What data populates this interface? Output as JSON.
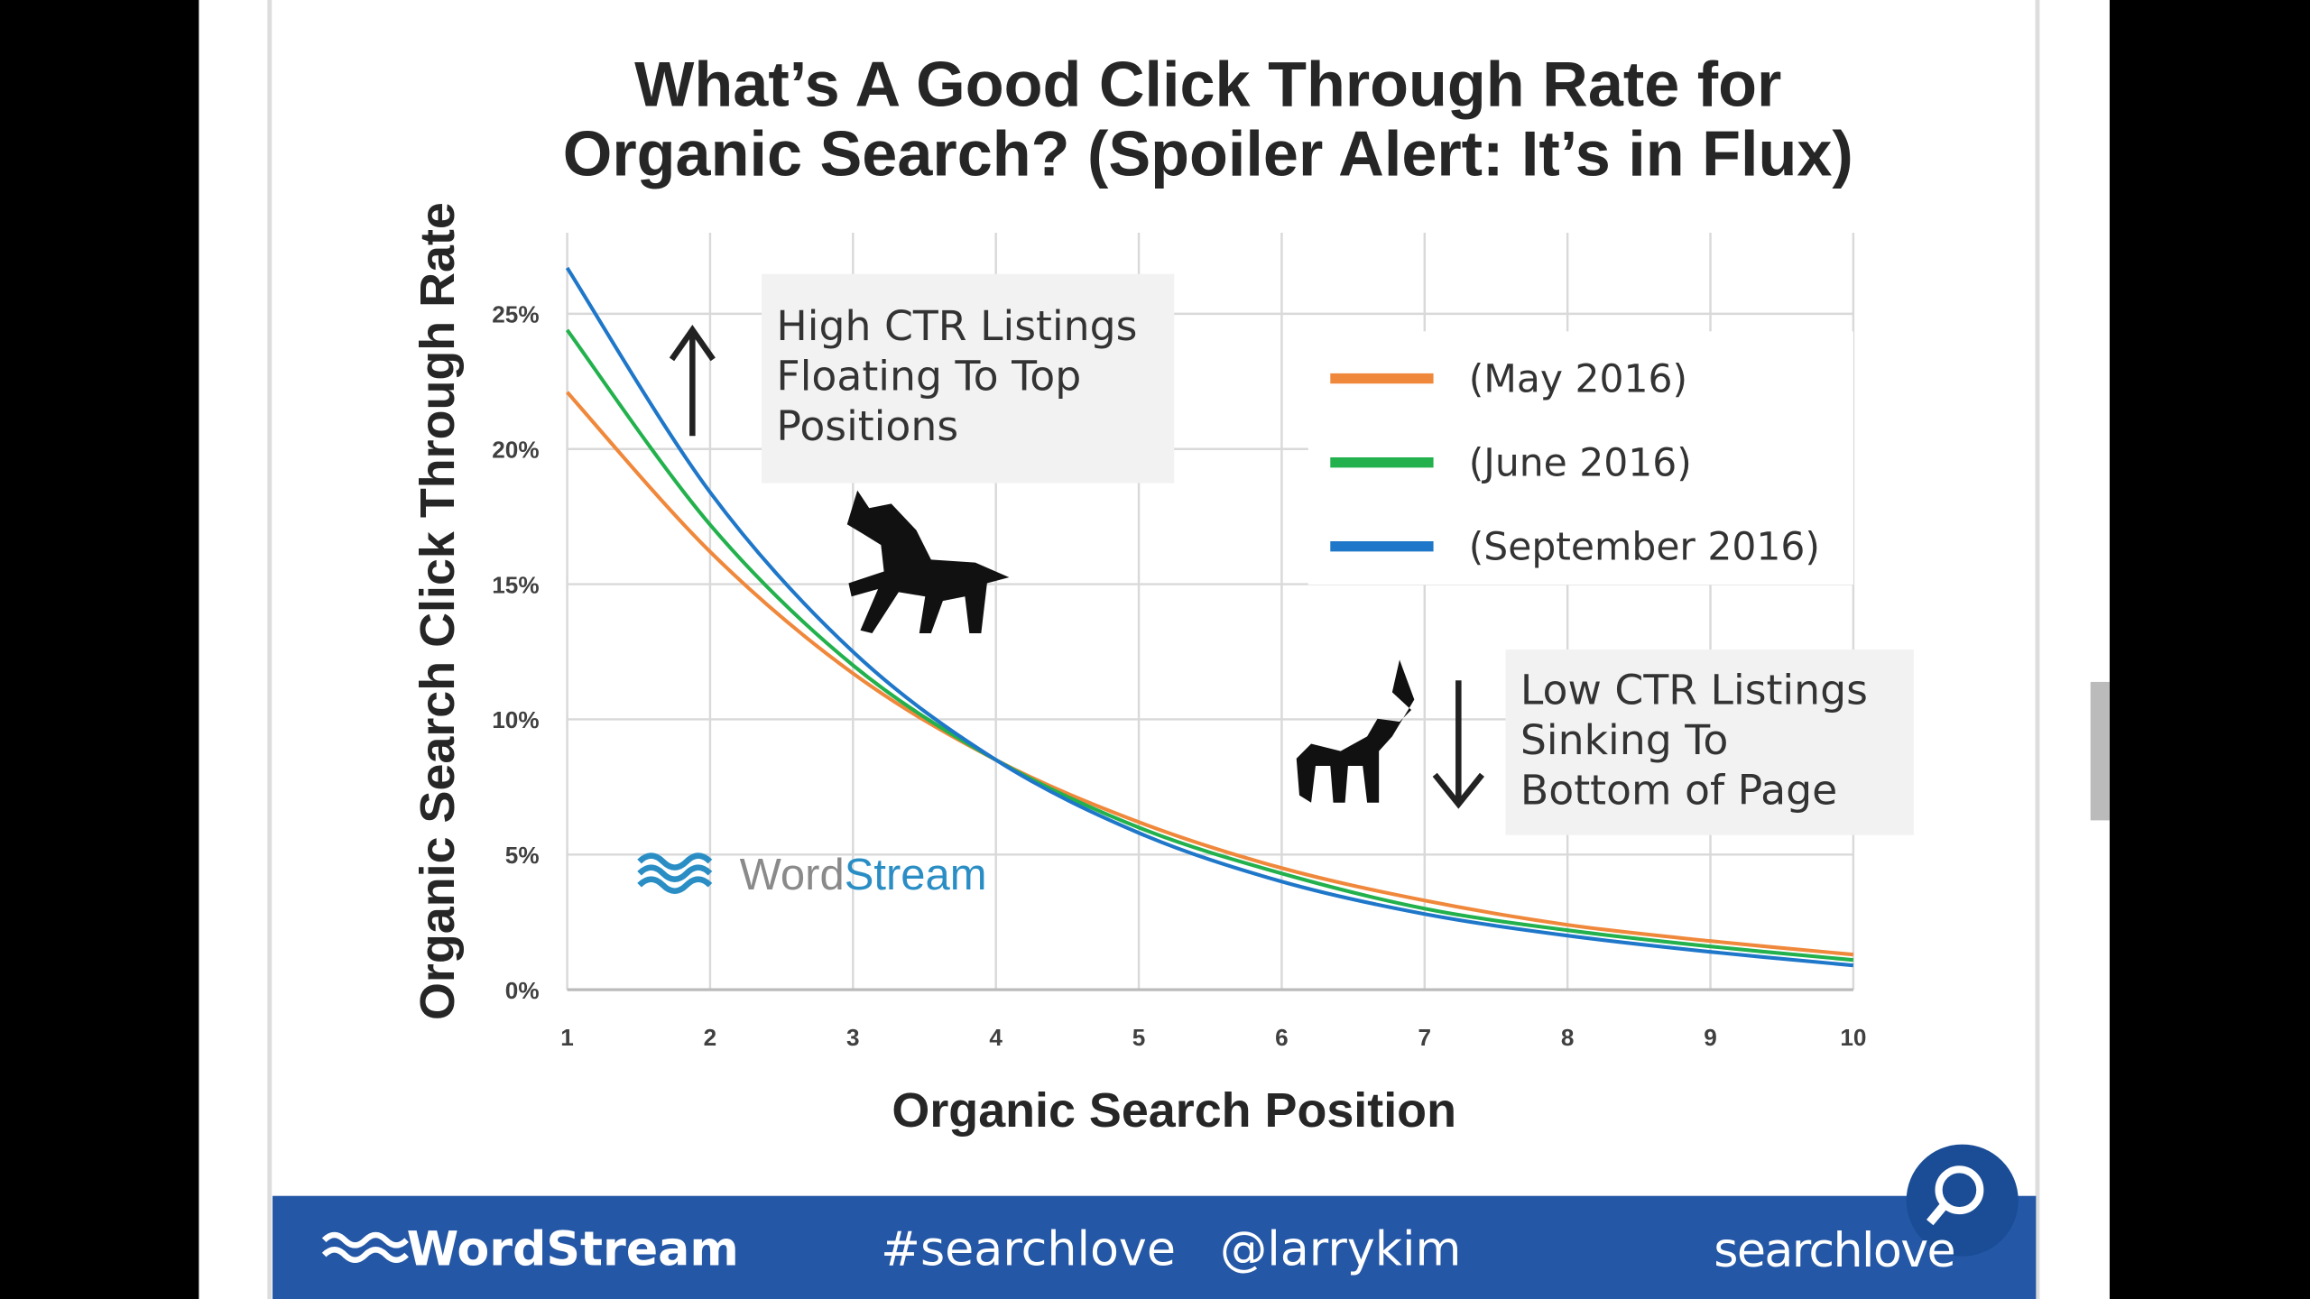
{
  "chart_data": {
    "type": "line",
    "title": [
      "What’s A Good Click Through Rate for",
      "Organic Search? (Spoiler Alert: It’s in Flux)"
    ],
    "x_label": "Organic Search Position",
    "y_label": "Organic Search Click Through Rate",
    "x": [
      1,
      2,
      3,
      4,
      5,
      6,
      7,
      8,
      9,
      10
    ],
    "xlim": [
      1,
      10
    ],
    "xticks": [
      1,
      2,
      3,
      4,
      5,
      6,
      7,
      8,
      9,
      10
    ],
    "ylim": [
      0,
      28
    ],
    "yticks": [
      {
        "value": 0,
        "label": "0%"
      },
      {
        "value": 5,
        "label": "5%"
      },
      {
        "value": 10,
        "label": "10%"
      },
      {
        "value": 15,
        "label": "15%"
      },
      {
        "value": 20,
        "label": "20%"
      },
      {
        "value": 25,
        "label": "25%"
      }
    ],
    "grid": true,
    "series": [
      {
        "name": "(May 2016)",
        "color": "#f0883c",
        "values": [
          22.1,
          16.2,
          11.7,
          8.5,
          6.2,
          4.5,
          3.3,
          2.4,
          1.8,
          1.3
        ]
      },
      {
        "name": "(June 2016)",
        "color": "#22b14c",
        "values": [
          24.4,
          17.2,
          12.0,
          8.5,
          6.0,
          4.3,
          3.0,
          2.2,
          1.6,
          1.1
        ]
      },
      {
        "name": "(September 2016)",
        "color": "#1f77c9",
        "values": [
          26.7,
          18.4,
          12.5,
          8.5,
          5.8,
          4.0,
          2.8,
          2.0,
          1.4,
          0.9
        ]
      }
    ],
    "annotations": [
      [
        "High CTR Listings",
        "Floating To Top",
        "Positions"
      ],
      [
        "Low CTR Listings",
        "Sinking To",
        "Bottom of Page"
      ]
    ],
    "watermark": [
      "Word",
      "Stream"
    ]
  },
  "footer": {
    "brand": "WordStream",
    "hashtag": "#searchlove",
    "handle": "@larrykim",
    "logo": "searchlove"
  }
}
